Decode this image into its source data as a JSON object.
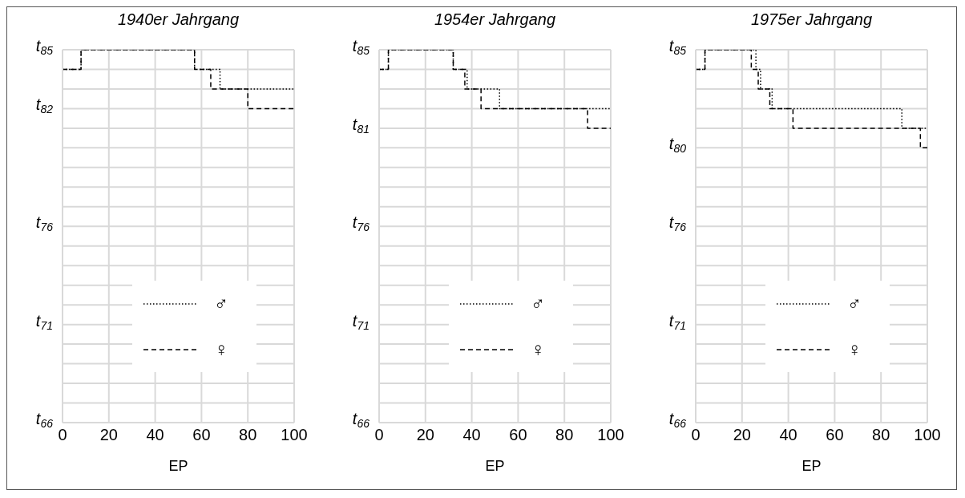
{
  "chart_data": [
    {
      "type": "step",
      "title": "1940er Jahrgang",
      "xlabel": "EP",
      "xlim": [
        0,
        100
      ],
      "xticks": [
        0,
        20,
        40,
        60,
        80,
        100
      ],
      "ylim": [
        66,
        85
      ],
      "yticks": [
        {
          "value": 66,
          "label": "t$_{66}$"
        },
        {
          "value": 67,
          "label": null
        },
        {
          "value": 68,
          "label": null
        },
        {
          "value": 69,
          "label": null
        },
        {
          "value": 70,
          "label": null
        },
        {
          "value": 71,
          "label": "t$_{71}$"
        },
        {
          "value": 72,
          "label": null
        },
        {
          "value": 73,
          "label": null
        },
        {
          "value": 74,
          "label": null
        },
        {
          "value": 75,
          "label": null
        },
        {
          "value": 76,
          "label": "t$_{76}$"
        },
        {
          "value": 77,
          "label": null
        },
        {
          "value": 78,
          "label": null
        },
        {
          "value": 79,
          "label": null
        },
        {
          "value": 80,
          "label": null
        },
        {
          "value": 81,
          "label": null
        },
        {
          "value": 82,
          "label": "t$_{82}$"
        },
        {
          "value": 83,
          "label": null
        },
        {
          "value": 84,
          "label": null
        },
        {
          "value": 85,
          "label": "t$_{85}$"
        }
      ],
      "grid": true,
      "legend": "bottom",
      "series": [
        {
          "name": "♂",
          "color": "#000000",
          "line_style": "dotted",
          "x": [
            0,
            8,
            57,
            68,
            100
          ],
          "values": [
            84,
            85,
            84,
            83,
            83
          ]
        },
        {
          "name": "♀",
          "color": "#000000",
          "line_style": "dashed",
          "x": [
            0,
            8,
            57,
            64,
            80,
            100
          ],
          "values": [
            84,
            85,
            84,
            83,
            82,
            82
          ]
        }
      ]
    },
    {
      "type": "step",
      "title": "1954er Jahrgang",
      "xlabel": "EP",
      "xlim": [
        0,
        100
      ],
      "xticks": [
        0,
        20,
        40,
        60,
        80,
        100
      ],
      "ylim": [
        66,
        85
      ],
      "yticks": [
        {
          "value": 66,
          "label": "t$_{66}$"
        },
        {
          "value": 67,
          "label": null
        },
        {
          "value": 68,
          "label": null
        },
        {
          "value": 69,
          "label": null
        },
        {
          "value": 70,
          "label": null
        },
        {
          "value": 71,
          "label": "t$_{71}$"
        },
        {
          "value": 72,
          "label": null
        },
        {
          "value": 73,
          "label": null
        },
        {
          "value": 74,
          "label": null
        },
        {
          "value": 75,
          "label": null
        },
        {
          "value": 76,
          "label": "t$_{76}$"
        },
        {
          "value": 77,
          "label": null
        },
        {
          "value": 78,
          "label": null
        },
        {
          "value": 79,
          "label": null
        },
        {
          "value": 80,
          "label": null
        },
        {
          "value": 81,
          "label": "t$_{81}$"
        },
        {
          "value": 82,
          "label": null
        },
        {
          "value": 83,
          "label": null
        },
        {
          "value": 84,
          "label": null
        },
        {
          "value": 85,
          "label": "t$_{85}$"
        }
      ],
      "grid": true,
      "legend": "bottom",
      "series": [
        {
          "name": "♂",
          "color": "#000000",
          "line_style": "dotted",
          "x": [
            0,
            4,
            32,
            38,
            52,
            100
          ],
          "values": [
            84,
            85,
            84,
            83,
            82,
            82
          ]
        },
        {
          "name": "♀",
          "color": "#000000",
          "line_style": "dashed",
          "x": [
            0,
            4,
            32,
            37,
            44,
            90,
            100
          ],
          "values": [
            84,
            85,
            84,
            83,
            82,
            81,
            81
          ]
        }
      ]
    },
    {
      "type": "step",
      "title": "1975er Jahrgang",
      "xlabel": "EP",
      "xlim": [
        0,
        100
      ],
      "xticks": [
        0,
        20,
        40,
        60,
        80,
        100
      ],
      "ylim": [
        66,
        85
      ],
      "yticks": [
        {
          "value": 66,
          "label": "t$_{66}$"
        },
        {
          "value": 67,
          "label": null
        },
        {
          "value": 68,
          "label": null
        },
        {
          "value": 69,
          "label": null
        },
        {
          "value": 70,
          "label": null
        },
        {
          "value": 71,
          "label": "t$_{71}$"
        },
        {
          "value": 72,
          "label": null
        },
        {
          "value": 73,
          "label": null
        },
        {
          "value": 74,
          "label": null
        },
        {
          "value": 75,
          "label": null
        },
        {
          "value": 76,
          "label": "t$_{76}$"
        },
        {
          "value": 77,
          "label": null
        },
        {
          "value": 78,
          "label": null
        },
        {
          "value": 79,
          "label": null
        },
        {
          "value": 80,
          "label": "t$_{80}$"
        },
        {
          "value": 81,
          "label": null
        },
        {
          "value": 82,
          "label": null
        },
        {
          "value": 83,
          "label": null
        },
        {
          "value": 84,
          "label": null
        },
        {
          "value": 85,
          "label": "t$_{85}$"
        }
      ],
      "grid": true,
      "legend": "bottom",
      "series": [
        {
          "name": "♂",
          "color": "#000000",
          "line_style": "dotted",
          "x": [
            0,
            4,
            26,
            28,
            33,
            89,
            100
          ],
          "values": [
            84,
            85,
            84,
            83,
            82,
            81,
            81
          ]
        },
        {
          "name": "♀",
          "color": "#000000",
          "line_style": "dashed",
          "x": [
            0,
            4,
            24,
            27,
            32,
            42,
            97,
            100
          ],
          "values": [
            84,
            85,
            84,
            83,
            82,
            81,
            80,
            80
          ]
        }
      ]
    }
  ]
}
